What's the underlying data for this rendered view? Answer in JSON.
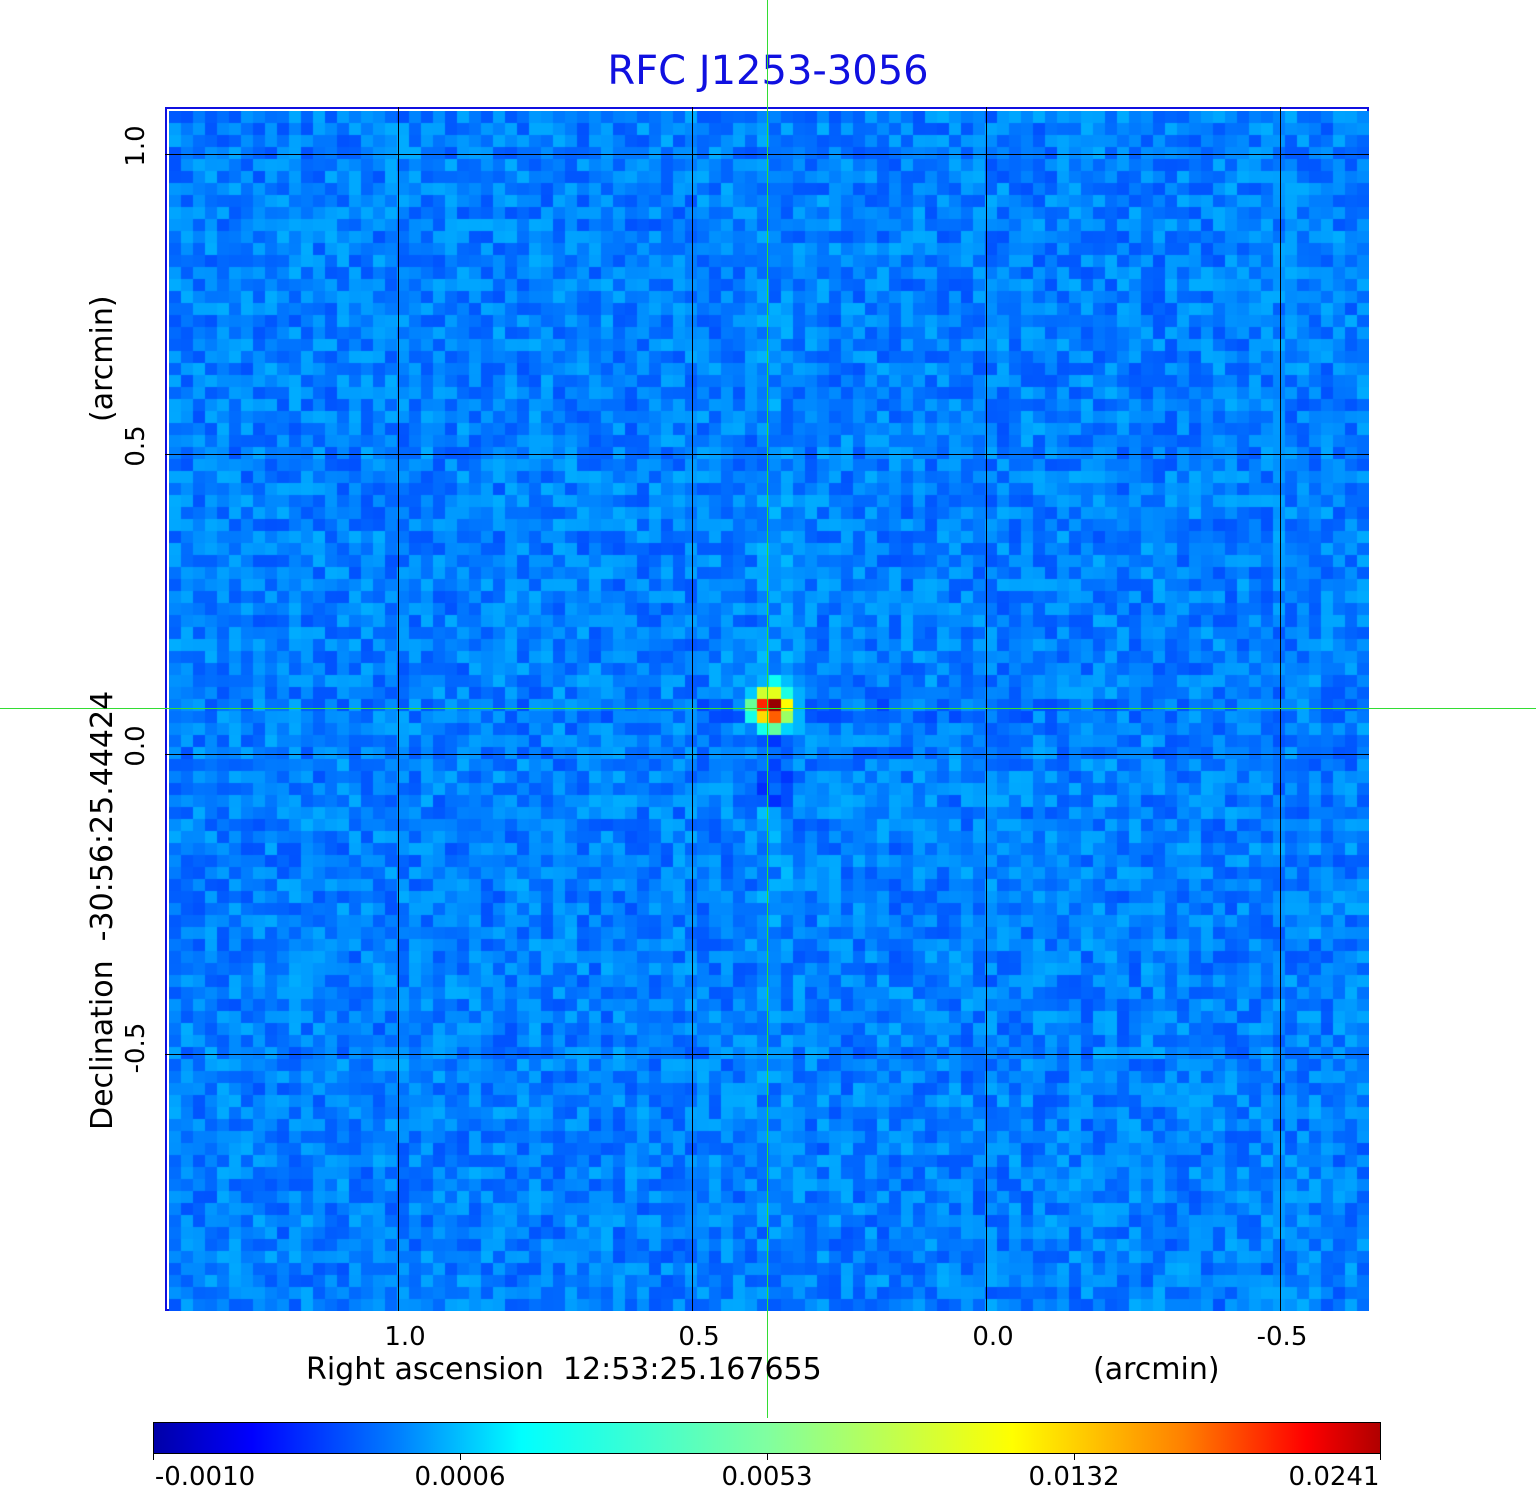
{
  "chart_data": {
    "type": "heatmap",
    "title": "RFC J1253-3056",
    "xlabel": "Right ascension  12:53:25.167655",
    "xunit": "(arcmin)",
    "ylabel": "Declination  -30:56:25.44424",
    "yunit": "(arcmin)",
    "x_ticks": [
      "1.0",
      "0.5",
      "0.0",
      "-0.5"
    ],
    "x_tick_values": [
      1.0,
      0.5,
      0.0,
      -0.5
    ],
    "y_ticks": [
      "1.0",
      "0.5",
      "0.0",
      "-0.5"
    ],
    "y_tick_values": [
      1.0,
      0.5,
      0.0,
      -0.5
    ],
    "xlim": [
      1.4,
      -0.65
    ],
    "ylim": [
      -0.93,
      1.08
    ],
    "grid": true,
    "colormap": "jet",
    "colorbar": {
      "placement": "bottom",
      "tick_labels": [
        "-0.0010",
        "0.0006",
        "0.0053",
        "0.0132",
        "0.0241"
      ],
      "tick_values": [
        -0.001,
        0.0006,
        0.0053,
        0.0132,
        0.0241
      ]
    },
    "background_level": 0.0006,
    "peak": {
      "x": 0.37,
      "y": 0.08,
      "value": 0.0241
    },
    "crosshair": {
      "x": 0.37,
      "y": 0.08,
      "color": "#33dd33"
    },
    "title_color": "#1010e0",
    "frame_color": "#1010e0"
  }
}
